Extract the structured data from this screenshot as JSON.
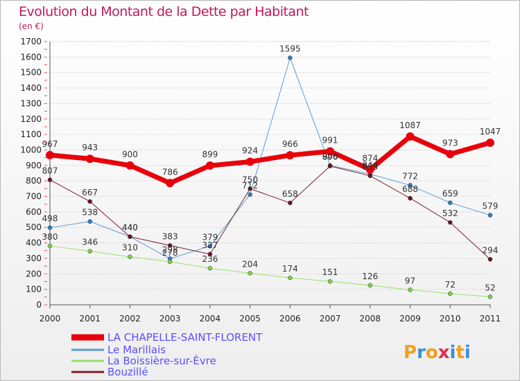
{
  "chart_data": {
    "type": "line",
    "title": "Evolution du Montant de la Dette par Habitant",
    "subtitle": "(en €)",
    "xlabel": "",
    "ylabel": "",
    "ylim": [
      0,
      1700
    ],
    "yticks": [
      0,
      100,
      200,
      300,
      400,
      500,
      600,
      700,
      800,
      900,
      1000,
      1100,
      1200,
      1300,
      1400,
      1500,
      1600,
      1700
    ],
    "categories": [
      "2000",
      "2001",
      "2002",
      "2003",
      "2004",
      "2005",
      "2006",
      "2007",
      "2008",
      "2009",
      "2010",
      "2011"
    ],
    "grid": "horizontal",
    "legend_position": "bottom-left",
    "series": [
      {
        "name": "LA CHAPELLE-SAINT-FLORENT",
        "color": "#e8000b",
        "width": 7,
        "marker": 6,
        "values": [
          967,
          943,
          900,
          786,
          899,
          924,
          966,
          991,
          874,
          1087,
          973,
          1047
        ],
        "labels": [
          "967",
          "943",
          "900",
          "786",
          "899",
          "924",
          "966",
          "991",
          "874",
          "1087",
          "973",
          "1047"
        ]
      },
      {
        "name": "Le Marillais",
        "color": "#5b9bd5",
        "markerColor": "#2f7dc1",
        "width": 1,
        "marker": 3,
        "values": [
          498,
          538,
          440,
          298,
          379,
          712,
          1595,
          900,
          844,
          772,
          659,
          579
        ],
        "labels": [
          "498",
          "538",
          "440",
          "298",
          "379",
          "712",
          "1595",
          "900",
          "844",
          "772",
          "659",
          "579"
        ]
      },
      {
        "name": "La Boissière-sur-Èvre",
        "color": "#99e06a",
        "markerColor": "#7fd14a",
        "width": 1,
        "marker": 3,
        "values": [
          380,
          346,
          310,
          278,
          236,
          204,
          174,
          151,
          126,
          97,
          72,
          52
        ],
        "labels": [
          "380",
          "346",
          "310",
          "278",
          "236",
          "204",
          "174",
          "151",
          "126",
          "97",
          "72",
          "52"
        ]
      },
      {
        "name": "Bouzillé",
        "color": "#7b1f2a",
        "markerColor": "#6b1420",
        "width": 1,
        "marker": 3,
        "values": [
          807,
          667,
          440,
          383,
          327,
          750,
          658,
          896,
          833,
          688,
          532,
          294
        ],
        "labels": [
          "807",
          "667",
          "440",
          "383",
          "327",
          "750",
          "658",
          "896",
          "833",
          "688",
          "532",
          "294"
        ]
      }
    ]
  },
  "logo": {
    "text": "Proxiti"
  }
}
